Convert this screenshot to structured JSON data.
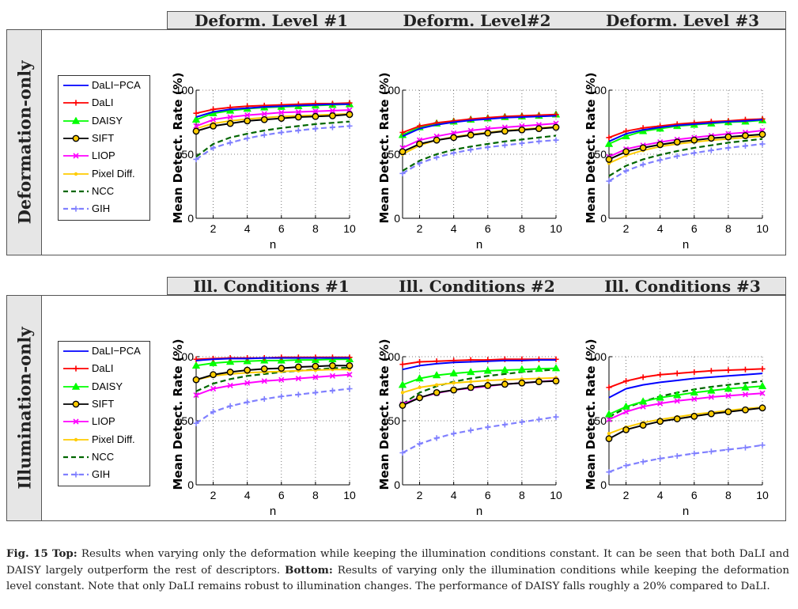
{
  "top_panel": {
    "row_label": "Deformation-only",
    "titles": [
      "Deform. Level #1",
      "Deform. Level#2",
      "Deform. Level #3"
    ]
  },
  "bottom_panel": {
    "row_label": "Illumination-only",
    "titles": [
      "Ill. Conditions #1",
      "Ill. Conditions #2",
      "Ill. Conditions #3"
    ]
  },
  "legend": [
    {
      "name": "DaLI−PCA",
      "color": "#0000ff",
      "marker": "none",
      "dash": false
    },
    {
      "name": "DaLI",
      "color": "#ff0000",
      "marker": "plus",
      "dash": false
    },
    {
      "name": "DAISY",
      "color": "#00ff00",
      "marker": "triangle",
      "dash": false
    },
    {
      "name": "SIFT",
      "color": "#000000",
      "marker": "circle",
      "dash": false
    },
    {
      "name": "LIOP",
      "color": "#ff00ff",
      "marker": "x",
      "dash": false
    },
    {
      "name": "Pixel Diff.",
      "color": "#ffcc00",
      "marker": "dot",
      "dash": false
    },
    {
      "name": "NCC",
      "color": "#006600",
      "marker": "none",
      "dash": true
    },
    {
      "name": "GIH",
      "color": "#8080ff",
      "marker": "plus",
      "dash": true
    }
  ],
  "chart_data": [
    {
      "type": "line",
      "title": "Deform. Level #1",
      "xlabel": "n",
      "ylabel": "Mean Detect. Rate (%)",
      "x": [
        1,
        2,
        3,
        4,
        5,
        6,
        7,
        8,
        9,
        10
      ],
      "xticks": [
        2,
        4,
        6,
        8,
        10
      ],
      "yticks": [
        0,
        50,
        100
      ],
      "xlim": [
        1,
        10
      ],
      "ylim": [
        0,
        100
      ],
      "grid": true,
      "series": [
        {
          "name": "DaLI−PCA",
          "values": [
            79,
            83,
            85,
            86,
            87,
            87.5,
            88,
            88.5,
            89,
            89
          ]
        },
        {
          "name": "DaLI",
          "values": [
            82,
            85,
            86.5,
            87.5,
            88,
            88.5,
            89,
            89.5,
            89.5,
            90
          ]
        },
        {
          "name": "DAISY",
          "values": [
            77,
            82,
            84,
            85.5,
            86.5,
            87,
            87.5,
            88,
            88.5,
            89
          ]
        },
        {
          "name": "SIFT",
          "values": [
            68,
            72,
            74,
            76,
            77,
            78,
            79,
            79.5,
            80,
            81
          ]
        },
        {
          "name": "LIOP",
          "values": [
            72,
            77,
            79,
            80.5,
            81.5,
            82.5,
            83,
            83.5,
            84,
            84.5
          ]
        },
        {
          "name": "Pixel Diff.",
          "values": [
            70,
            74,
            76,
            77.5,
            78.5,
            79.5,
            80,
            80.5,
            81,
            81.5
          ]
        },
        {
          "name": "NCC",
          "values": [
            48,
            58,
            63,
            66,
            68.5,
            70.5,
            72,
            73.5,
            74.5,
            75.5
          ]
        },
        {
          "name": "GIH",
          "values": [
            46,
            55,
            59,
            62.5,
            65,
            67,
            68.5,
            70,
            71,
            72
          ]
        }
      ]
    },
    {
      "type": "line",
      "title": "Deform. Level#2",
      "xlabel": "n",
      "ylabel": "Mean Detect. Rate (%)",
      "x": [
        1,
        2,
        3,
        4,
        5,
        6,
        7,
        8,
        9,
        10
      ],
      "xticks": [
        2,
        4,
        6,
        8,
        10
      ],
      "yticks": [
        0,
        50,
        100
      ],
      "xlim": [
        1,
        10
      ],
      "ylim": [
        0,
        100
      ],
      "grid": true,
      "series": [
        {
          "name": "DaLI−PCA",
          "values": [
            64,
            70,
            73,
            75,
            76.5,
            77.5,
            78.5,
            79,
            79.5,
            80
          ]
        },
        {
          "name": "DaLI",
          "values": [
            67,
            72,
            74.5,
            76,
            77.5,
            78.5,
            79.5,
            80,
            80.5,
            81
          ]
        },
        {
          "name": "DAISY",
          "values": [
            65,
            71,
            74,
            75.5,
            77,
            78,
            79,
            79.5,
            80,
            81
          ]
        },
        {
          "name": "SIFT",
          "values": [
            52,
            58,
            61,
            63,
            65,
            66.5,
            68,
            69,
            70,
            71
          ]
        },
        {
          "name": "LIOP",
          "values": [
            55,
            61,
            64,
            66.5,
            68.5,
            70,
            71,
            72,
            73,
            74
          ]
        },
        {
          "name": "Pixel Diff.",
          "values": [
            50,
            57,
            61,
            63.5,
            65.5,
            67,
            68.5,
            69.5,
            70.5,
            71.5
          ]
        },
        {
          "name": "NCC",
          "values": [
            37,
            45,
            50,
            53.5,
            56,
            58,
            60,
            61.5,
            63,
            64.5
          ]
        },
        {
          "name": "GIH",
          "values": [
            35,
            43,
            47.5,
            51,
            53.5,
            55.5,
            57,
            58.5,
            60,
            61
          ]
        }
      ]
    },
    {
      "type": "line",
      "title": "Deform. Level #3",
      "xlabel": "n",
      "ylabel": "Mean Detect. Rate (%)",
      "x": [
        1,
        2,
        3,
        4,
        5,
        6,
        7,
        8,
        9,
        10
      ],
      "xticks": [
        2,
        4,
        6,
        8,
        10
      ],
      "yticks": [
        0,
        50,
        100
      ],
      "xlim": [
        1,
        10
      ],
      "ylim": [
        0,
        100
      ],
      "grid": true,
      "series": [
        {
          "name": "DaLI−PCA",
          "values": [
            60,
            66,
            69,
            71,
            72.5,
            73.5,
            74.5,
            75.5,
            76,
            77
          ]
        },
        {
          "name": "DaLI",
          "values": [
            63,
            68,
            70.5,
            72,
            73.5,
            74.5,
            75.5,
            76,
            77,
            77.5
          ]
        },
        {
          "name": "DAISY",
          "values": [
            58,
            64,
            68,
            70,
            72,
            73,
            74,
            75,
            75.5,
            76.5
          ]
        },
        {
          "name": "SIFT",
          "values": [
            46,
            52,
            55,
            57.5,
            59.5,
            61,
            62.5,
            63.5,
            64.5,
            65.5
          ]
        },
        {
          "name": "LIOP",
          "values": [
            48,
            54,
            57,
            59.5,
            61.5,
            63,
            64.5,
            66,
            67,
            68.5
          ]
        },
        {
          "name": "Pixel Diff.",
          "values": [
            43,
            49,
            53,
            56,
            58,
            59.5,
            61,
            62,
            63,
            64
          ]
        },
        {
          "name": "NCC",
          "values": [
            33,
            41,
            46,
            49.5,
            52.5,
            55,
            57,
            59,
            60.5,
            62
          ]
        },
        {
          "name": "GIH",
          "values": [
            29,
            37,
            42,
            45.5,
            48.5,
            51,
            53,
            55,
            56.5,
            58
          ]
        }
      ]
    },
    {
      "type": "line",
      "title": "Ill. Conditions #1",
      "xlabel": "n",
      "ylabel": "Mean Detect. Rate (%)",
      "x": [
        1,
        2,
        3,
        4,
        5,
        6,
        7,
        8,
        9,
        10
      ],
      "xticks": [
        2,
        4,
        6,
        8,
        10
      ],
      "yticks": [
        0,
        50,
        100
      ],
      "xlim": [
        1,
        10
      ],
      "ylim": [
        0,
        100
      ],
      "grid": true,
      "series": [
        {
          "name": "DaLI−PCA",
          "values": [
            97,
            98,
            98.5,
            98.5,
            99,
            99,
            99,
            99,
            99,
            99
          ]
        },
        {
          "name": "DaLI",
          "values": [
            98,
            98.5,
            99,
            99,
            99,
            99.5,
            99.5,
            99.5,
            99.5,
            99.5
          ]
        },
        {
          "name": "DAISY",
          "values": [
            93,
            95,
            96,
            96.5,
            97,
            97,
            97.5,
            97.5,
            98,
            98
          ]
        },
        {
          "name": "SIFT",
          "values": [
            82,
            86,
            88,
            89.5,
            90.5,
            91,
            92,
            92.5,
            93,
            93
          ]
        },
        {
          "name": "LIOP",
          "values": [
            70,
            75,
            77.5,
            79.5,
            81,
            82,
            83,
            84,
            85,
            86
          ]
        },
        {
          "name": "Pixel Diff.",
          "values": [
            82,
            85,
            86.5,
            87.5,
            88,
            88.5,
            89,
            89.5,
            90,
            90
          ]
        },
        {
          "name": "NCC",
          "values": [
            73,
            79,
            82.5,
            85,
            86.5,
            88,
            89,
            90,
            91,
            91.5
          ]
        },
        {
          "name": "GIH",
          "values": [
            48,
            57,
            61.5,
            64.5,
            67,
            69,
            70.5,
            72,
            73.5,
            75
          ]
        }
      ]
    },
    {
      "type": "line",
      "title": "Ill. Conditions #2",
      "xlabel": "n",
      "ylabel": "Mean Detect. Rate (%)",
      "x": [
        1,
        2,
        3,
        4,
        5,
        6,
        7,
        8,
        9,
        10
      ],
      "xticks": [
        2,
        4,
        6,
        8,
        10
      ],
      "yticks": [
        0,
        50,
        100
      ],
      "xlim": [
        1,
        10
      ],
      "ylim": [
        0,
        100
      ],
      "grid": true,
      "series": [
        {
          "name": "DaLI−PCA",
          "values": [
            90,
            93,
            94.5,
            95.5,
            96,
            96.5,
            97,
            97,
            97.5,
            97.5
          ]
        },
        {
          "name": "DaLI",
          "values": [
            94,
            96,
            96.5,
            97,
            97.5,
            97.5,
            98,
            98,
            98,
            98
          ]
        },
        {
          "name": "DAISY",
          "values": [
            78,
            83,
            85.5,
            87,
            88,
            89,
            89.5,
            90,
            90.5,
            91
          ]
        },
        {
          "name": "SIFT",
          "values": [
            62,
            68,
            72,
            74,
            76,
            77.5,
            78.5,
            79.5,
            80.5,
            81
          ]
        },
        {
          "name": "LIOP",
          "values": [
            63,
            68,
            71.5,
            74,
            75.5,
            77,
            78.5,
            79.5,
            80.5,
            81.5
          ]
        },
        {
          "name": "Pixel Diff.",
          "values": [
            72,
            76,
            78,
            79.5,
            80.5,
            81.5,
            82,
            82.5,
            83,
            83.5
          ]
        },
        {
          "name": "NCC",
          "values": [
            63,
            72,
            77,
            80.5,
            83,
            85,
            86.5,
            88,
            89,
            90
          ]
        },
        {
          "name": "GIH",
          "values": [
            25,
            32,
            36.5,
            40,
            42.5,
            45,
            47,
            49,
            51,
            53
          ]
        }
      ]
    },
    {
      "type": "line",
      "title": "Ill. Conditions #3",
      "xlabel": "n",
      "ylabel": "Mean Detect. Rate (%)",
      "x": [
        1,
        2,
        3,
        4,
        5,
        6,
        7,
        8,
        9,
        10
      ],
      "xticks": [
        2,
        4,
        6,
        8,
        10
      ],
      "yticks": [
        0,
        50,
        100
      ],
      "xlim": [
        1,
        10
      ],
      "ylim": [
        0,
        100
      ],
      "grid": true,
      "series": [
        {
          "name": "DaLI−PCA",
          "values": [
            68,
            75,
            78,
            80,
            81.5,
            83,
            84,
            85,
            86,
            87
          ]
        },
        {
          "name": "DaLI",
          "values": [
            76,
            81,
            84,
            86,
            87,
            88,
            89,
            89.5,
            90,
            90.5
          ]
        },
        {
          "name": "DAISY",
          "values": [
            55,
            61,
            65,
            68,
            70,
            72,
            73.5,
            75,
            76,
            77
          ]
        },
        {
          "name": "SIFT",
          "values": [
            36,
            43,
            46.5,
            49.5,
            51.5,
            53.5,
            55.5,
            57,
            58.5,
            60
          ]
        },
        {
          "name": "LIOP",
          "values": [
            51,
            57,
            61,
            63.5,
            65.5,
            67,
            68.5,
            69.5,
            70.5,
            71.5
          ]
        },
        {
          "name": "Pixel Diff.",
          "values": [
            40,
            45,
            48.5,
            51,
            53,
            55,
            56.5,
            58,
            59.5,
            60.5
          ]
        },
        {
          "name": "NCC",
          "values": [
            53,
            60,
            65,
            69,
            72,
            74.5,
            76.5,
            78,
            79.5,
            81
          ]
        },
        {
          "name": "GIH",
          "values": [
            10,
            15,
            18,
            20.5,
            22.5,
            24.5,
            26,
            27.5,
            29,
            31
          ]
        }
      ]
    }
  ],
  "caption": {
    "fig_label": "Fig. 15",
    "top_label": "Top:",
    "top_text": " Results when varying only the deformation while keeping the illumination conditions constant. It can be seen that both DaLI and DAISY largely outperform the rest of descriptors. ",
    "bottom_label": "Bottom:",
    "bottom_text": " Results of varying only the illumination conditions while keeping the deformation level constant. Note that only DaLI remains robust to illumination changes. The performance of DAISY falls roughly a 20% compared to DaLI."
  }
}
